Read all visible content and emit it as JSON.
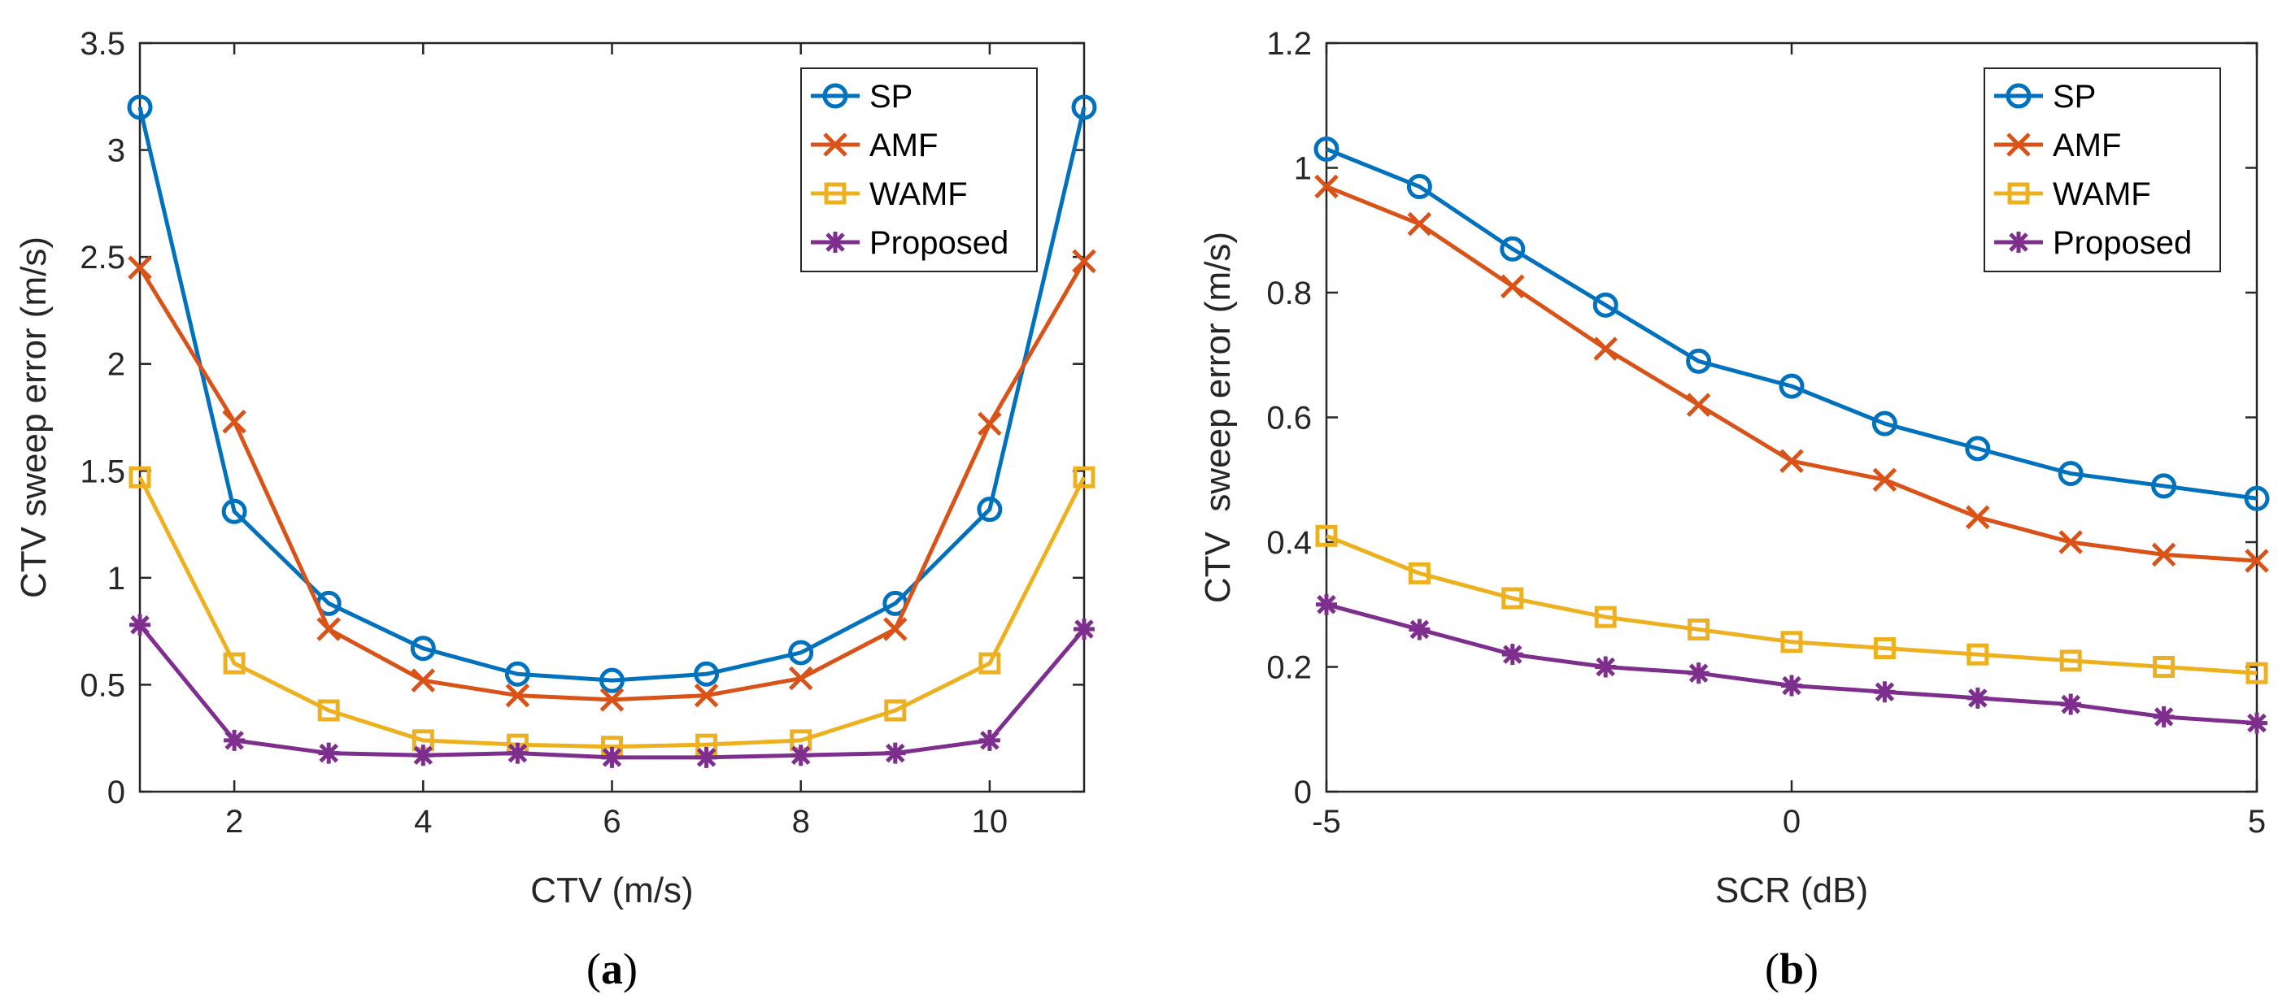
{
  "chart_data": [
    {
      "type": "line",
      "panel_label": [
        "(",
        "a",
        ")"
      ],
      "xlabel": "CTV (m/s)",
      "ylabel": "CTV sweep error (m/s)",
      "xlim": [
        1,
        11
      ],
      "ylim": [
        0,
        3.5
      ],
      "xticks": [
        2,
        4,
        6,
        8,
        10
      ],
      "xtick_labels": [
        "2",
        "4",
        "6",
        "8",
        "10"
      ],
      "yticks": [
        0,
        0.5,
        1,
        1.5,
        2,
        2.5,
        3,
        3.5
      ],
      "ytick_labels": [
        "0",
        "0.5",
        "1",
        "1.5",
        "2",
        "2.5",
        "3",
        "3.5"
      ],
      "legend_position": "top-right",
      "x": [
        1,
        2,
        3,
        4,
        5,
        6,
        7,
        8,
        9,
        10,
        11
      ],
      "series": [
        {
          "name": "SP",
          "marker": "circle",
          "color": "#0072BD",
          "values": [
            3.2,
            1.31,
            0.88,
            0.67,
            0.55,
            0.52,
            0.55,
            0.65,
            0.88,
            1.32,
            3.2
          ]
        },
        {
          "name": "AMF",
          "marker": "x",
          "color": "#D95319",
          "values": [
            2.45,
            1.73,
            0.76,
            0.52,
            0.45,
            0.43,
            0.45,
            0.53,
            0.76,
            1.72,
            2.48
          ]
        },
        {
          "name": "WAMF",
          "marker": "square",
          "color": "#EDB120",
          "values": [
            1.47,
            0.6,
            0.38,
            0.24,
            0.22,
            0.21,
            0.22,
            0.24,
            0.38,
            0.6,
            1.47
          ]
        },
        {
          "name": "Proposed",
          "marker": "asterisk",
          "color": "#7E2F8E",
          "values": [
            0.78,
            0.24,
            0.18,
            0.17,
            0.18,
            0.16,
            0.16,
            0.17,
            0.18,
            0.24,
            0.76
          ]
        }
      ]
    },
    {
      "type": "line",
      "panel_label": [
        "(",
        "b",
        ")"
      ],
      "xlabel": "SCR (dB)",
      "ylabel": "CTV  sweep error (m/s)",
      "xlim": [
        -5,
        5
      ],
      "ylim": [
        0,
        1.2
      ],
      "xticks": [
        -5,
        0,
        5
      ],
      "xtick_labels": [
        "-5",
        "0",
        "5"
      ],
      "yticks": [
        0,
        0.2,
        0.4,
        0.6,
        0.8,
        1,
        1.2
      ],
      "ytick_labels": [
        "0",
        "0.2",
        "0.4",
        "0.6",
        "0.8",
        "1",
        "1.2"
      ],
      "legend_position": "top-right",
      "x": [
        -5,
        -4,
        -3,
        -2,
        -1,
        0,
        1,
        2,
        3,
        4,
        5
      ],
      "series": [
        {
          "name": "SP",
          "marker": "circle",
          "color": "#0072BD",
          "values": [
            1.03,
            0.97,
            0.87,
            0.78,
            0.69,
            0.65,
            0.59,
            0.55,
            0.51,
            0.49,
            0.47
          ]
        },
        {
          "name": "AMF",
          "marker": "x",
          "color": "#D95319",
          "values": [
            0.97,
            0.91,
            0.81,
            0.71,
            0.62,
            0.53,
            0.5,
            0.44,
            0.4,
            0.38,
            0.37
          ]
        },
        {
          "name": "WAMF",
          "marker": "square",
          "color": "#EDB120",
          "values": [
            0.41,
            0.35,
            0.31,
            0.28,
            0.26,
            0.24,
            0.23,
            0.22,
            0.21,
            0.2,
            0.19
          ]
        },
        {
          "name": "Proposed",
          "marker": "asterisk",
          "color": "#7E2F8E",
          "values": [
            0.3,
            0.26,
            0.22,
            0.2,
            0.19,
            0.17,
            0.16,
            0.15,
            0.14,
            0.12,
            0.11
          ]
        }
      ]
    }
  ]
}
